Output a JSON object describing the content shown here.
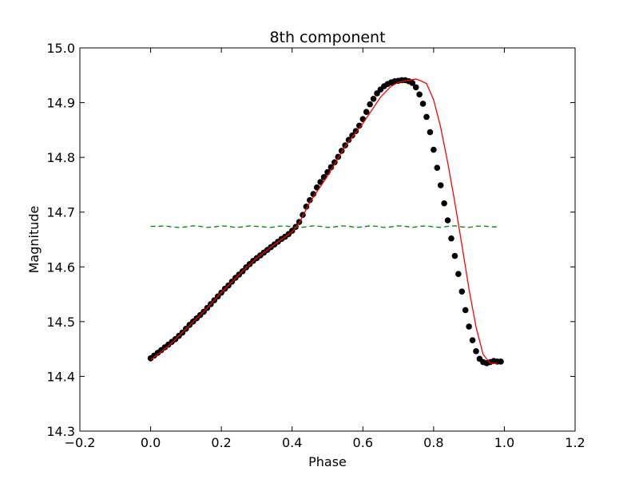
{
  "chart_data": {
    "type": "line",
    "title": "8th component",
    "xlabel": "Phase",
    "ylabel": "Magnitude",
    "xlim": [
      -0.2,
      1.2
    ],
    "ylim": [
      14.3,
      15.0
    ],
    "x_ticks": [
      -0.2,
      0.0,
      0.2,
      0.4,
      0.6,
      0.8,
      1.0,
      1.2
    ],
    "x_tick_labels": [
      "−0.2",
      "0.0",
      "0.2",
      "0.4",
      "0.6",
      "0.8",
      "1.0",
      "1.2"
    ],
    "y_ticks": [
      14.3,
      14.4,
      14.5,
      14.6,
      14.7,
      14.8,
      14.9,
      15.0
    ],
    "y_tick_labels": [
      "14.3",
      "14.4",
      "14.5",
      "14.6",
      "14.7",
      "14.8",
      "14.9",
      "15.0"
    ],
    "grid": false,
    "legend": "none",
    "colors": {
      "points": "#000000",
      "fit": "#ff0000",
      "residual": "#008000"
    },
    "series": [
      {
        "kind": "scatter",
        "color": "#000000",
        "x": [
          0.0,
          0.01,
          0.02,
          0.03,
          0.04,
          0.05,
          0.06,
          0.07,
          0.08,
          0.09,
          0.1,
          0.11,
          0.12,
          0.13,
          0.14,
          0.15,
          0.16,
          0.17,
          0.18,
          0.19,
          0.2,
          0.21,
          0.22,
          0.23,
          0.24,
          0.25,
          0.26,
          0.27,
          0.28,
          0.29,
          0.3,
          0.31,
          0.32,
          0.33,
          0.34,
          0.35,
          0.36,
          0.37,
          0.38,
          0.39,
          0.4,
          0.41,
          0.42,
          0.43,
          0.44,
          0.45,
          0.46,
          0.47,
          0.48,
          0.49,
          0.5,
          0.51,
          0.52,
          0.53,
          0.54,
          0.55,
          0.56,
          0.57,
          0.58,
          0.59,
          0.6,
          0.61,
          0.62,
          0.63,
          0.64,
          0.65,
          0.66,
          0.67,
          0.68,
          0.69,
          0.7,
          0.71,
          0.72,
          0.73,
          0.74,
          0.75,
          0.76,
          0.77,
          0.78,
          0.79,
          0.8,
          0.81,
          0.82,
          0.83,
          0.84,
          0.85,
          0.86,
          0.87,
          0.88,
          0.89,
          0.9,
          0.91,
          0.92,
          0.93,
          0.94,
          0.95,
          0.96,
          0.97,
          0.98,
          0.99
        ],
        "y": [
          14.433,
          14.438,
          14.443,
          14.448,
          14.453,
          14.458,
          14.463,
          14.468,
          14.474,
          14.48,
          14.487,
          14.494,
          14.5,
          14.506,
          14.512,
          14.518,
          14.525,
          14.532,
          14.539,
          14.546,
          14.553,
          14.56,
          14.566,
          14.573,
          14.58,
          14.586,
          14.592,
          14.599,
          14.605,
          14.611,
          14.616,
          14.621,
          14.626,
          14.631,
          14.636,
          14.641,
          14.646,
          14.651,
          14.655,
          14.66,
          14.666,
          14.673,
          14.682,
          14.695,
          14.71,
          14.722,
          14.733,
          14.745,
          14.755,
          14.764,
          14.773,
          14.782,
          14.791,
          14.801,
          14.812,
          14.822,
          14.832,
          14.84,
          14.848,
          14.858,
          14.87,
          14.883,
          14.897,
          14.907,
          14.917,
          14.924,
          14.93,
          14.934,
          14.937,
          14.939,
          14.94,
          14.941,
          14.941,
          14.939,
          14.936,
          14.928,
          14.915,
          14.898,
          14.874,
          14.846,
          14.814,
          14.781,
          14.749,
          14.716,
          14.685,
          14.652,
          14.62,
          14.587,
          14.555,
          14.521,
          14.491,
          14.466,
          14.446,
          14.432,
          14.426,
          14.424,
          14.426,
          14.428,
          14.427,
          14.427
        ]
      },
      {
        "kind": "line",
        "color": "#ff0000",
        "x": [
          0.0,
          0.05,
          0.1,
          0.15,
          0.2,
          0.25,
          0.3,
          0.35,
          0.4,
          0.42,
          0.45,
          0.5,
          0.55,
          0.6,
          0.65,
          0.68,
          0.7,
          0.72,
          0.74,
          0.75,
          0.76,
          0.78,
          0.8,
          0.82,
          0.84,
          0.86,
          0.88,
          0.9,
          0.92,
          0.94,
          0.96,
          0.98
        ],
        "y": [
          14.43,
          14.455,
          14.487,
          14.518,
          14.553,
          14.586,
          14.616,
          14.641,
          14.664,
          14.68,
          14.718,
          14.766,
          14.82,
          14.862,
          14.91,
          14.93,
          14.937,
          14.94,
          14.942,
          14.943,
          14.941,
          14.935,
          14.905,
          14.855,
          14.79,
          14.718,
          14.64,
          14.56,
          14.49,
          14.44,
          14.424,
          14.424
        ]
      },
      {
        "kind": "dashed-line",
        "color": "#008000",
        "x": [
          0.0,
          0.02,
          0.04,
          0.06,
          0.08,
          0.1,
          0.12,
          0.14,
          0.16,
          0.18,
          0.2,
          0.22,
          0.24,
          0.26,
          0.28,
          0.3,
          0.32,
          0.34,
          0.36,
          0.38,
          0.4,
          0.42,
          0.44,
          0.46,
          0.48,
          0.5,
          0.52,
          0.54,
          0.56,
          0.58,
          0.6,
          0.62,
          0.64,
          0.66,
          0.68,
          0.7,
          0.72,
          0.74,
          0.76,
          0.78,
          0.8,
          0.82,
          0.84,
          0.86,
          0.88,
          0.9,
          0.92,
          0.94,
          0.96,
          0.98
        ],
        "y": [
          14.674,
          14.674,
          14.675,
          14.673,
          14.672,
          14.673,
          14.675,
          14.674,
          14.672,
          14.673,
          14.675,
          14.674,
          14.672,
          14.673,
          14.675,
          14.674,
          14.673,
          14.672,
          14.674,
          14.675,
          14.673,
          14.672,
          14.673,
          14.675,
          14.674,
          14.672,
          14.673,
          14.675,
          14.674,
          14.672,
          14.673,
          14.675,
          14.674,
          14.672,
          14.673,
          14.675,
          14.674,
          14.672,
          14.674,
          14.675,
          14.673,
          14.672,
          14.674,
          14.675,
          14.673,
          14.672,
          14.674,
          14.675,
          14.673,
          14.673
        ]
      }
    ]
  }
}
